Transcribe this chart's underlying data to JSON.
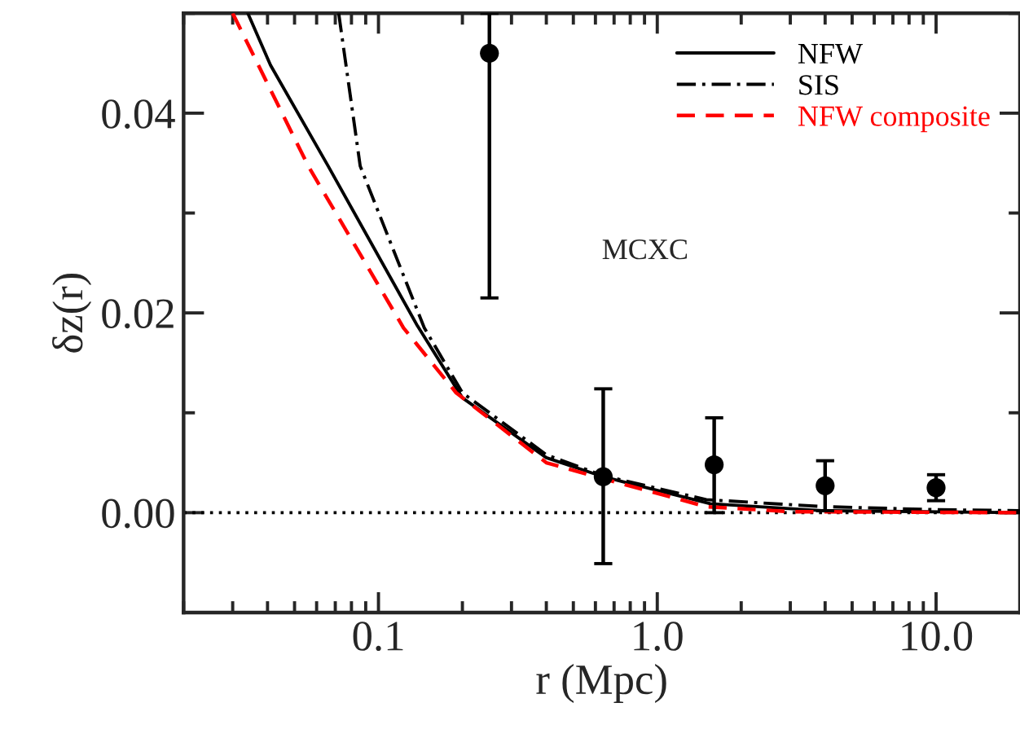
{
  "chart_data": {
    "type": "line",
    "xlabel": "r (Mpc)",
    "ylabel": "δz(r)",
    "log": "x",
    "grid": false,
    "legend": "top right",
    "xlim": [
      0.02,
      20
    ],
    "xticks": [
      {
        "value": 0.1,
        "label": "0.1"
      },
      {
        "value": 1,
        "label": "1.0"
      },
      {
        "value": 10,
        "label": "10.0"
      }
    ],
    "ylim": [
      -0.01,
      0.05
    ],
    "yticks": [
      {
        "value": 0,
        "label": "0.00"
      },
      {
        "value": 0.02,
        "label": "0.02"
      },
      {
        "value": 0.04,
        "label": "0.04"
      }
    ],
    "annotations": [
      "MCXC"
    ],
    "ref_lines": [
      {
        "axis": "y",
        "value": 0,
        "color": "#000000",
        "line_style": "dotted"
      }
    ],
    "series": [
      {
        "name": "NFW",
        "color": "#000000",
        "line_style": "solid",
        "x": [
          0.034,
          0.041,
          0.066,
          0.138,
          0.2,
          0.4,
          0.64,
          1.55,
          3.9,
          20
        ],
        "values": [
          0.05,
          0.0448,
          0.0347,
          0.0187,
          0.0115,
          0.0055,
          0.0036,
          0.0009,
          0.0002,
          0
        ]
      },
      {
        "name": "SIS",
        "color": "#000000",
        "line_style": "dashdot",
        "x": [
          0.072,
          0.086,
          0.146,
          0.2,
          0.4,
          0.64,
          1.5,
          4,
          10,
          20
        ],
        "values": [
          0.05,
          0.0347,
          0.0185,
          0.012,
          0.0058,
          0.0037,
          0.0013,
          0.0006,
          0.0003,
          0.0002
        ]
      },
      {
        "name": "NFW composite",
        "color": "#ff0000",
        "line_style": "dashed",
        "x": [
          0.03,
          0.056,
          0.123,
          0.19,
          0.4,
          0.64,
          1.5,
          3,
          20
        ],
        "values": [
          0.05,
          0.0347,
          0.0185,
          0.012,
          0.005,
          0.0034,
          0.0006,
          0.0001,
          0
        ]
      },
      {
        "type": "scatter",
        "color": "#000000",
        "marker": "circle",
        "x": [
          0.25,
          0.64,
          1.6,
          4.0,
          10
        ],
        "values": [
          0.046,
          0.0036,
          0.0048,
          0.0027,
          0.0025
        ],
        "errors": [
          [
            0.0215,
            0.05
          ],
          [
            -0.0051,
            0.0124
          ],
          [
            0.0,
            0.0095
          ],
          [
            0.0002,
            0.0052
          ],
          [
            0.0012,
            0.0038
          ]
        ]
      }
    ]
  }
}
